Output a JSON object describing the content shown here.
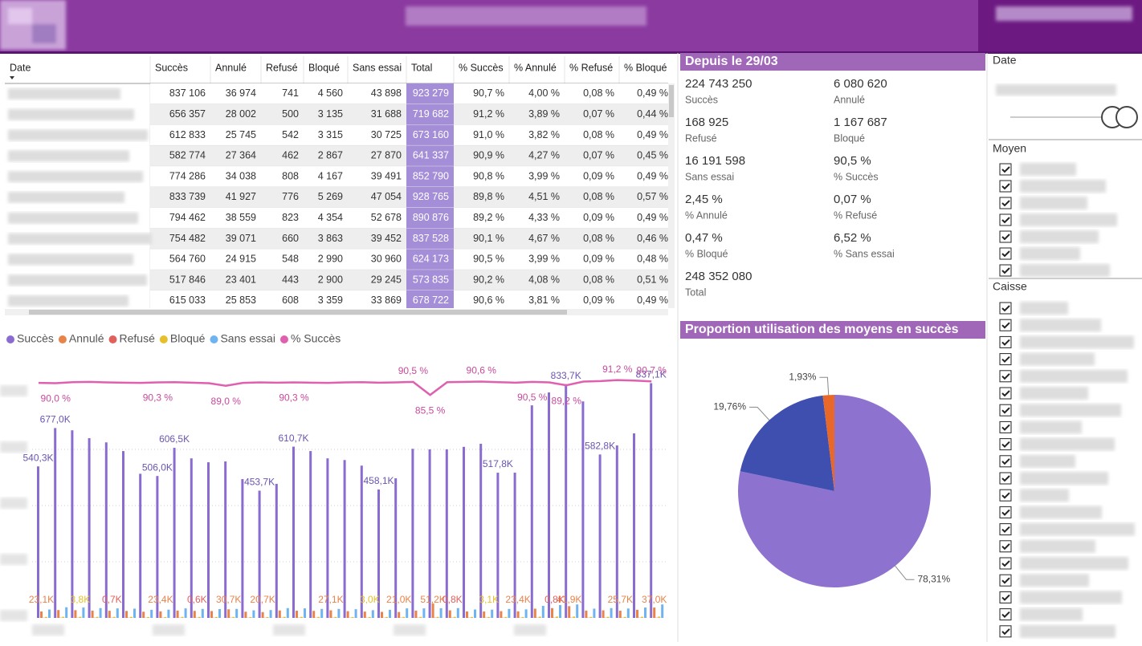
{
  "table": {
    "columns": [
      "Date",
      "Succès",
      "Annulé",
      "Refusé",
      "Bloqué",
      "Sans essai",
      "Total",
      "% Succès",
      "% Annulé",
      "% Refusé",
      "% Bloqué"
    ],
    "rows": [
      [
        null,
        "837 106",
        "36 974",
        "741",
        "4 560",
        "43 898",
        "923 279",
        "90,7 %",
        "4,00 %",
        "0,08 %",
        "0,49 %"
      ],
      [
        null,
        "656 357",
        "28 002",
        "500",
        "3 135",
        "31 688",
        "719 682",
        "91,2 %",
        "3,89 %",
        "0,07 %",
        "0,44 %"
      ],
      [
        null,
        "612 833",
        "25 745",
        "542",
        "3 315",
        "30 725",
        "673 160",
        "91,0 %",
        "3,82 %",
        "0,08 %",
        "0,49 %"
      ],
      [
        null,
        "582 774",
        "27 364",
        "462",
        "2 867",
        "27 870",
        "641 337",
        "90,9 %",
        "4,27 %",
        "0,07 %",
        "0,45 %"
      ],
      [
        null,
        "774 286",
        "34 038",
        "808",
        "4 167",
        "39 491",
        "852 790",
        "90,8 %",
        "3,99 %",
        "0,09 %",
        "0,49 %"
      ],
      [
        null,
        "833 739",
        "41 927",
        "776",
        "5 269",
        "47 054",
        "928 765",
        "89,8 %",
        "4,51 %",
        "0,08 %",
        "0,57 %"
      ],
      [
        null,
        "794 462",
        "38 559",
        "823",
        "4 354",
        "52 678",
        "890 876",
        "89,2 %",
        "4,33 %",
        "0,09 %",
        "0,49 %"
      ],
      [
        null,
        "754 482",
        "39 071",
        "660",
        "3 863",
        "39 452",
        "837 528",
        "90,1 %",
        "4,67 %",
        "0,08 %",
        "0,46 %"
      ],
      [
        null,
        "564 760",
        "24 915",
        "548",
        "2 990",
        "30 960",
        "624 173",
        "90,5 %",
        "3,99 %",
        "0,09 %",
        "0,48 %"
      ],
      [
        null,
        "517 846",
        "23 401",
        "443",
        "2 900",
        "29 245",
        "573 835",
        "90,2 %",
        "4,08 %",
        "0,08 %",
        "0,51 %"
      ],
      [
        null,
        "615 033",
        "25 853",
        "608",
        "3 359",
        "33 869",
        "678 722",
        "90,6 %",
        "3,81 %",
        "0,09 %",
        "0,49 %"
      ]
    ]
  },
  "kpi": {
    "title": "Depuis le 29/03",
    "items": [
      {
        "value": "224 743 250",
        "label": "Succès"
      },
      {
        "value": "6 080 620",
        "label": "Annulé"
      },
      {
        "value": "168 925",
        "label": "Refusé"
      },
      {
        "value": "1 167 687",
        "label": "Bloqué"
      },
      {
        "value": "16 191 598",
        "label": "Sans essai"
      },
      {
        "value": "90,5 %",
        "label": "% Succès"
      },
      {
        "value": "2,45 %",
        "label": "% Annulé"
      },
      {
        "value": "0,07 %",
        "label": "% Refusé"
      },
      {
        "value": "0,47 %",
        "label": "% Bloqué"
      },
      {
        "value": "6,52 %",
        "label": "% Sans essai"
      },
      {
        "value": "248 352 080",
        "label": "Total"
      }
    ]
  },
  "slicers": {
    "date": {
      "title": "Date"
    },
    "moyen": {
      "title": "Moyen"
    },
    "caisse": {
      "title": "Caisse"
    }
  },
  "chart_data": [
    {
      "type": "combo",
      "legend": "top-left",
      "ylim": [
        0,
        930000
      ],
      "y2lim": [
        0,
        100
      ],
      "categories": [
        null,
        null,
        null,
        null,
        null,
        null,
        null,
        null,
        null,
        null,
        null,
        null,
        null,
        null,
        null,
        null,
        null,
        null,
        null,
        null,
        null,
        null,
        null,
        null,
        null,
        null,
        null,
        null,
        null,
        null,
        null,
        null,
        null,
        null,
        null,
        null,
        null
      ],
      "series": [
        {
          "name": "Succès",
          "type": "bar",
          "color": "#8a6cd1",
          "values": [
            540300,
            677000,
            669000,
            641000,
            626000,
            595000,
            514000,
            506000,
            606500,
            569000,
            555000,
            558000,
            495000,
            453700,
            478000,
            610700,
            595000,
            569000,
            563000,
            543000,
            458100,
            498000,
            603000,
            601000,
            601000,
            610000,
            621000,
            517800,
            518000,
            758000,
            804000,
            833700,
            772000,
            582800,
            615000,
            658000,
            837100
          ],
          "value_labels": [
            "540,3K",
            "677,0K",
            null,
            null,
            null,
            null,
            null,
            "506,0K",
            "606,5K",
            null,
            null,
            null,
            null,
            "453,7K",
            null,
            "610,7K",
            null,
            null,
            null,
            null,
            "458,1K",
            null,
            null,
            null,
            null,
            null,
            null,
            "517,8K",
            null,
            null,
            null,
            "833,7K",
            null,
            "582,8K",
            null,
            null,
            "837,1K"
          ]
        },
        {
          "name": "Annulé",
          "type": "bar",
          "color": "#e8834a",
          "values": [
            23100,
            28000,
            27500,
            26000,
            25500,
            24800,
            22000,
            23400,
            26000,
            25000,
            24500,
            30700,
            22000,
            20700,
            26500,
            25800,
            25000,
            27100,
            24000,
            22500,
            21500,
            21000,
            26000,
            51200,
            27000,
            23000,
            22800,
            24000,
            23400,
            33000,
            35000,
            41900,
            26000,
            27000,
            25700,
            29000,
            37000
          ],
          "value_labels": [
            "23,1K",
            null,
            null,
            null,
            null,
            null,
            null,
            "23,4K",
            null,
            null,
            null,
            "30,7K",
            null,
            "20,7K",
            null,
            null,
            null,
            "27,1K",
            null,
            null,
            null,
            "21,0K",
            null,
            "51,2K",
            null,
            null,
            null,
            null,
            "23,4K",
            null,
            null,
            "41,9K",
            null,
            null,
            "25,7K",
            null,
            "37,0K"
          ]
        },
        {
          "name": "Refusé",
          "type": "bar",
          "color": "#e0605c",
          "values": [
            650,
            700,
            600,
            620,
            700,
            640,
            580,
            600,
            650,
            600,
            620,
            660,
            540,
            560,
            700,
            680,
            640,
            630,
            610,
            540,
            560,
            700,
            690,
            700,
            800,
            650,
            620,
            600,
            590,
            720,
            800,
            780,
            660,
            690,
            650,
            700,
            740
          ],
          "value_labels": [
            null,
            null,
            null,
            null,
            "0,7K",
            null,
            null,
            null,
            null,
            "0,6K",
            null,
            null,
            null,
            null,
            null,
            null,
            null,
            null,
            null,
            null,
            null,
            null,
            null,
            null,
            "0,8K",
            null,
            null,
            null,
            null,
            null,
            "0,8K",
            null,
            null,
            null,
            null,
            null,
            null
          ]
        },
        {
          "name": "Bloqué",
          "type": "bar",
          "color": "#e6c02a",
          "values": [
            3400,
            4000,
            3800,
            3700,
            3600,
            3500,
            3000,
            3100,
            3600,
            3400,
            3300,
            3500,
            2900,
            3000,
            3700,
            3600,
            3400,
            3300,
            3200,
            3000,
            3100,
            3600,
            3500,
            3500,
            3600,
            3200,
            3100,
            3300,
            3200,
            4300,
            4600,
            4800,
            3500,
            3700,
            3500,
            3900,
            4500
          ],
          "value_labels": [
            null,
            null,
            "3,8K",
            null,
            null,
            null,
            null,
            null,
            null,
            null,
            null,
            null,
            null,
            null,
            null,
            null,
            null,
            null,
            null,
            "3,0K",
            null,
            null,
            null,
            null,
            null,
            null,
            "3,1K",
            null,
            null,
            null,
            null,
            null,
            null,
            null,
            null,
            null,
            null
          ]
        },
        {
          "name": "Sans essai",
          "type": "bar",
          "color": "#6fb3f0",
          "values": [
            30000,
            38000,
            37000,
            35000,
            34000,
            33000,
            29000,
            29500,
            34000,
            32000,
            31500,
            32000,
            27000,
            28000,
            35000,
            34000,
            32000,
            32000,
            31000,
            27500,
            29000,
            34000,
            34000,
            34500,
            35000,
            30000,
            29500,
            32000,
            30500,
            43000,
            46000,
            48000,
            33000,
            35000,
            33500,
            37000,
            48000
          ]
        },
        {
          "name": "% Succès",
          "type": "line",
          "axis": "y2",
          "color": "#e060b0",
          "values": [
            90.1,
            90.0,
            90.4,
            90.5,
            90.3,
            90.2,
            90.1,
            90.3,
            90.4,
            90.2,
            90.0,
            89.0,
            90.1,
            90.3,
            90.2,
            90.3,
            90.2,
            90.1,
            90.3,
            90.4,
            90.2,
            90.3,
            90.5,
            85.5,
            90.4,
            90.5,
            90.6,
            90.4,
            90.2,
            90.5,
            90.3,
            89.2,
            90.6,
            90.8,
            91.2,
            91.0,
            90.7
          ],
          "value_labels": [
            null,
            "90,0 %",
            null,
            null,
            null,
            null,
            null,
            "90,3 %",
            null,
            null,
            null,
            "89,0 %",
            null,
            null,
            null,
            "90,3 %",
            null,
            null,
            null,
            null,
            null,
            null,
            "90,5 %",
            "85,5 %",
            null,
            null,
            "90,6 %",
            null,
            null,
            "90,5 %",
            null,
            "89,2 %",
            null,
            null,
            "91,2 %",
            null,
            "90,7 %"
          ]
        }
      ]
    },
    {
      "type": "pie",
      "title": "Proportion utilisation des moyens en succès",
      "categories": [
        null,
        null,
        null
      ],
      "values": [
        78.31,
        19.76,
        1.93
      ],
      "value_labels": [
        "78,31%",
        "19,76%",
        "1,93%"
      ],
      "colors": [
        "#8e72d0",
        "#3f4fb0",
        "#e8682a"
      ]
    }
  ]
}
